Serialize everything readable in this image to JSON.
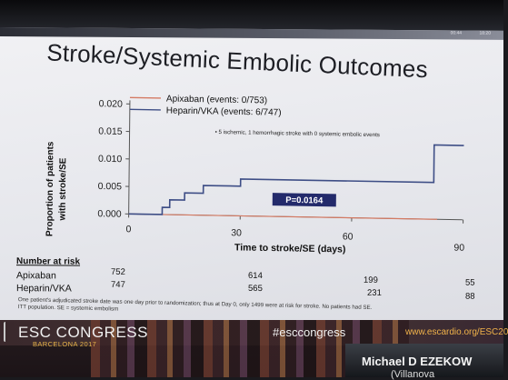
{
  "slide": {
    "title": "Stroke/Systemic Embolic Outcomes",
    "header_clock": [
      "00:44",
      "18:20"
    ]
  },
  "chart_data": {
    "type": "line",
    "xlabel": "Time to stroke/SE (days)",
    "ylabel_lines": [
      "Proportion of patients",
      "with stroke/SE"
    ],
    "xlim": [
      0,
      90
    ],
    "ylim": [
      0,
      0.02
    ],
    "x_ticks": [
      0,
      30,
      60,
      90
    ],
    "y_ticks": [
      "0.000",
      "0.005",
      "0.010",
      "0.015",
      "0.020"
    ],
    "series": [
      {
        "name": "Apixaban (events: 0/753)",
        "color": "#d47a63",
        "points": [
          [
            0,
            0.0
          ],
          [
            83,
            0.0
          ]
        ]
      },
      {
        "name": "Heparin/VKA (events: 6/747)",
        "color": "#3e4e86",
        "points": [
          [
            0,
            0
          ],
          [
            9,
            0
          ],
          [
            9,
            0.0013
          ],
          [
            11,
            0.0013
          ],
          [
            11,
            0.0027
          ],
          [
            15,
            0.0027
          ],
          [
            15,
            0.004
          ],
          [
            20,
            0.004
          ],
          [
            20,
            0.0054
          ],
          [
            30,
            0.0054
          ],
          [
            30,
            0.0067
          ],
          [
            82,
            0.0067
          ],
          [
            82,
            0.0135
          ],
          [
            90,
            0.0135
          ]
        ]
      }
    ],
    "series_note": "5 ischemic, 1 hemorrhagic stroke with 0 systemic embolic events",
    "p_value": "P=0.0164"
  },
  "risk_table": {
    "title": "Number at risk",
    "rows": [
      {
        "name": "Apixaban",
        "values": [
          "752",
          "614",
          "199",
          "55"
        ]
      },
      {
        "name": "Heparin/VKA",
        "values": [
          "747",
          "565",
          "231",
          "88"
        ]
      }
    ]
  },
  "footnote": {
    "line1": "One patient's adjudicated stroke date was one day prior to randomization; thus at Day 0, only 1499 were at risk for stroke. No patients had SE.",
    "line2": "ITT population.  SE = systemic embolism"
  },
  "footer": {
    "congress": "ESC CONGRESS",
    "city": "BARCELONA 2017",
    "hashtag": "#esccongress",
    "website": "www.escardio.org/ESC20",
    "speaker": "Michael D EZEKOW",
    "affiliation": "(Villanova"
  }
}
